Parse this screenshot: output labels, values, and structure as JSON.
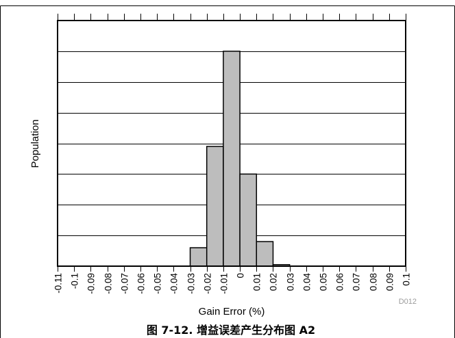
{
  "chart_data": {
    "type": "bar",
    "title": "",
    "xlabel": "Gain Error (%)",
    "ylabel": "Population",
    "categories": [
      "-0.11",
      "-0.1",
      "-0.09",
      "-0.08",
      "-0.07",
      "-0.06",
      "-0.05",
      "-0.04",
      "-0.03",
      "-0.02",
      "-0.01",
      "0",
      "0.01",
      "0.02",
      "0.03",
      "0.04",
      "0.05",
      "0.06",
      "0.07",
      "0.08",
      "0.09",
      "0.1"
    ],
    "bins": [
      {
        "from": -0.03,
        "to": -0.02,
        "value": 6
      },
      {
        "from": -0.02,
        "to": -0.01,
        "value": 39
      },
      {
        "from": -0.01,
        "to": 0,
        "value": 70
      },
      {
        "from": 0,
        "to": 0.01,
        "value": 30
      },
      {
        "from": 0.01,
        "to": 0.02,
        "value": 8
      },
      {
        "from": 0.02,
        "to": 0.03,
        "value": 0.5
      }
    ],
    "xlim": [
      -0.11,
      0.1
    ],
    "ylim": [
      0,
      80
    ],
    "y_ticks_labeled": false,
    "grid": "horizontal",
    "bar_color": "#bdbdbd",
    "note": "D012"
  },
  "figure_caption": "图 7-12. 增益误差产生分布图 A2"
}
